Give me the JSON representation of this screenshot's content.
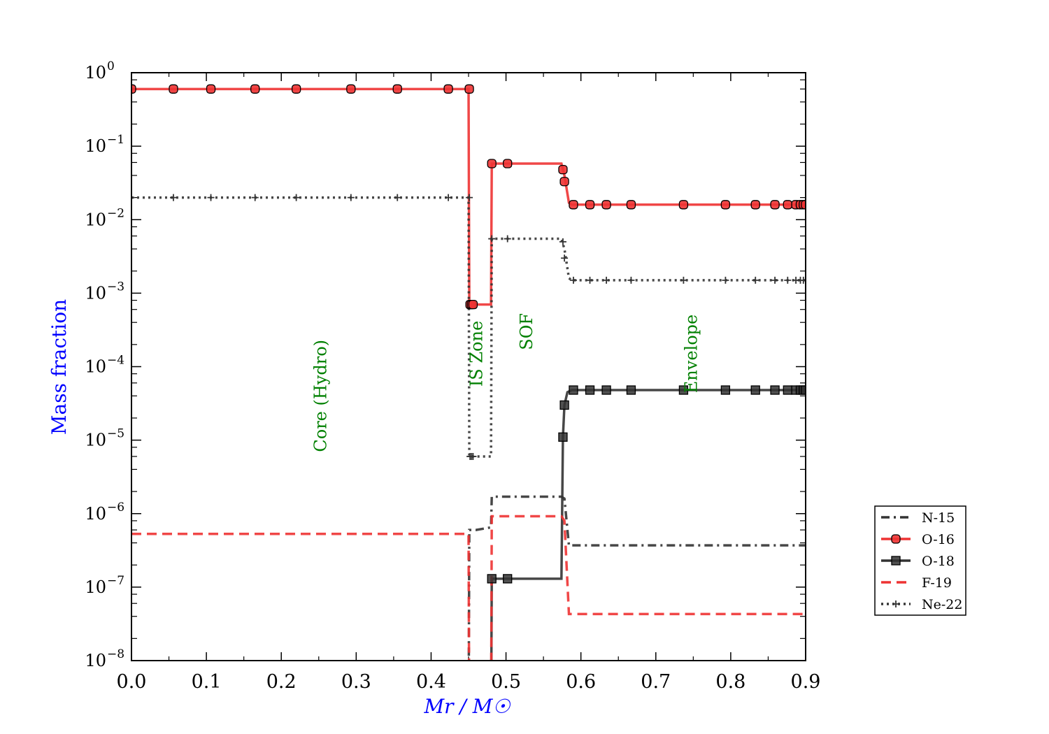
{
  "chart_data": {
    "type": "line",
    "title": "",
    "xlabel": "Mr / M☉",
    "ylabel": "Mass fraction",
    "xlim": [
      0.0,
      0.9
    ],
    "ylim_log10": [
      -8,
      0
    ],
    "yscale": "log",
    "xticks": [
      "0.0",
      "0.1",
      "0.2",
      "0.3",
      "0.4",
      "0.5",
      "0.6",
      "0.7",
      "0.8",
      "0.9"
    ],
    "yticks": [
      {
        "base": "10",
        "exp": "0",
        "value": 1
      },
      {
        "base": "10",
        "exp": "−1",
        "value": 0.1
      },
      {
        "base": "10",
        "exp": "−2",
        "value": 0.01
      },
      {
        "base": "10",
        "exp": "−3",
        "value": 0.001
      },
      {
        "base": "10",
        "exp": "−4",
        "value": 0.0001
      },
      {
        "base": "10",
        "exp": "−5",
        "value": 1e-05
      },
      {
        "base": "10",
        "exp": "−6",
        "value": 1e-06
      },
      {
        "base": "10",
        "exp": "−7",
        "value": 1e-07
      },
      {
        "base": "10",
        "exp": "−8",
        "value": 1e-08
      }
    ],
    "legend_position": "right, outside lower",
    "annotations": [
      {
        "text": "Core (Hydro)",
        "x": 0.26,
        "y": 4e-05
      },
      {
        "text": "IS Zone",
        "x": 0.468,
        "y": 0.00015
      },
      {
        "text": "SOF",
        "x": 0.535,
        "y": 0.0003
      },
      {
        "text": "Envelope",
        "x": 0.755,
        "y": 0.00015
      }
    ],
    "series": [
      {
        "name": "N-15",
        "color": "#333333",
        "linestyle": "dashdot",
        "marker": "none",
        "x": [
          0.0,
          0.45,
          0.451,
          0.46,
          0.48,
          0.481,
          0.574,
          0.578,
          0.584,
          0.9
        ],
        "y": [
          1e-09,
          1e-09,
          6e-07,
          6e-07,
          6.5e-07,
          1.7e-06,
          1.7e-06,
          1.6e-06,
          3.7e-07,
          3.7e-07
        ]
      },
      {
        "name": "O-16",
        "color": "#ee3333",
        "linestyle": "solid",
        "marker": "circle",
        "x": [
          0.0,
          0.45,
          0.451,
          0.452,
          0.48,
          0.481,
          0.574,
          0.578,
          0.584,
          0.588,
          0.9
        ],
        "y": [
          0.6,
          0.6,
          0.0007,
          0.0007,
          0.0007,
          0.058,
          0.058,
          0.04,
          0.017,
          0.016,
          0.016
        ],
        "markers_x": [
          0.0,
          0.056,
          0.106,
          0.165,
          0.22,
          0.293,
          0.355,
          0.423,
          0.451,
          0.452,
          0.454,
          0.456,
          0.481,
          0.502,
          0.576,
          0.578,
          0.59,
          0.612,
          0.634,
          0.667,
          0.737,
          0.793,
          0.833,
          0.859,
          0.876,
          0.887,
          0.893,
          0.897,
          0.9
        ],
        "markers_y": [
          0.6,
          0.6,
          0.6,
          0.6,
          0.6,
          0.6,
          0.6,
          0.6,
          0.6,
          0.0007,
          0.0007,
          0.0007,
          0.058,
          0.058,
          0.048,
          0.033,
          0.016,
          0.016,
          0.016,
          0.016,
          0.016,
          0.016,
          0.016,
          0.016,
          0.016,
          0.016,
          0.016,
          0.016,
          0.016
        ]
      },
      {
        "name": "O-18",
        "color": "#333333",
        "linestyle": "solid",
        "marker": "square",
        "x": [
          0.48,
          0.481,
          0.574,
          0.576,
          0.578,
          0.582,
          0.588,
          0.9
        ],
        "y": [
          1e-09,
          1.3e-07,
          1.3e-07,
          1.1e-05,
          3e-05,
          4.5e-05,
          4.8e-05,
          4.8e-05
        ],
        "markers_x": [
          0.481,
          0.502,
          0.576,
          0.578,
          0.59,
          0.612,
          0.634,
          0.667,
          0.737,
          0.793,
          0.833,
          0.859,
          0.876,
          0.887,
          0.893,
          0.897,
          0.9
        ],
        "markers_y": [
          1.3e-07,
          1.3e-07,
          1.1e-05,
          3e-05,
          4.8e-05,
          4.8e-05,
          4.8e-05,
          4.8e-05,
          4.8e-05,
          4.8e-05,
          4.8e-05,
          4.8e-05,
          4.8e-05,
          4.8e-05,
          4.8e-05,
          4.8e-05,
          4.8e-05
        ]
      },
      {
        "name": "F-19",
        "color": "#ee3333",
        "linestyle": "dashed",
        "marker": "none",
        "x": [
          0.0,
          0.45,
          0.451,
          0.48,
          0.481,
          0.574,
          0.578,
          0.584,
          0.9
        ],
        "y": [
          5.3e-07,
          5.3e-07,
          1e-09,
          1e-09,
          9.2e-07,
          9.2e-07,
          8e-07,
          4.3e-08,
          4.3e-08
        ]
      },
      {
        "name": "Ne-22",
        "color": "#333333",
        "linestyle": "dotted",
        "marker": "plus",
        "x": [
          0.0,
          0.45,
          0.451,
          0.48,
          0.481,
          0.574,
          0.578,
          0.584,
          0.588,
          0.9
        ],
        "y": [
          0.02,
          0.02,
          6e-06,
          6e-06,
          0.0055,
          0.0055,
          0.004,
          0.0016,
          0.0015,
          0.0015
        ],
        "markers_x": [
          0.0,
          0.056,
          0.106,
          0.165,
          0.22,
          0.293,
          0.355,
          0.423,
          0.451,
          0.452,
          0.454,
          0.456,
          0.481,
          0.502,
          0.576,
          0.578,
          0.59,
          0.612,
          0.634,
          0.667,
          0.737,
          0.793,
          0.833,
          0.859,
          0.876,
          0.887,
          0.893,
          0.897,
          0.9
        ],
        "markers_y": [
          0.02,
          0.02,
          0.02,
          0.02,
          0.02,
          0.02,
          0.02,
          0.02,
          0.02,
          6e-06,
          6e-06,
          6e-06,
          0.0055,
          0.0055,
          0.005,
          0.003,
          0.0015,
          0.0015,
          0.0015,
          0.0015,
          0.0015,
          0.0015,
          0.0015,
          0.0015,
          0.0015,
          0.0015,
          0.0015,
          0.0015,
          0.0015
        ]
      }
    ]
  }
}
